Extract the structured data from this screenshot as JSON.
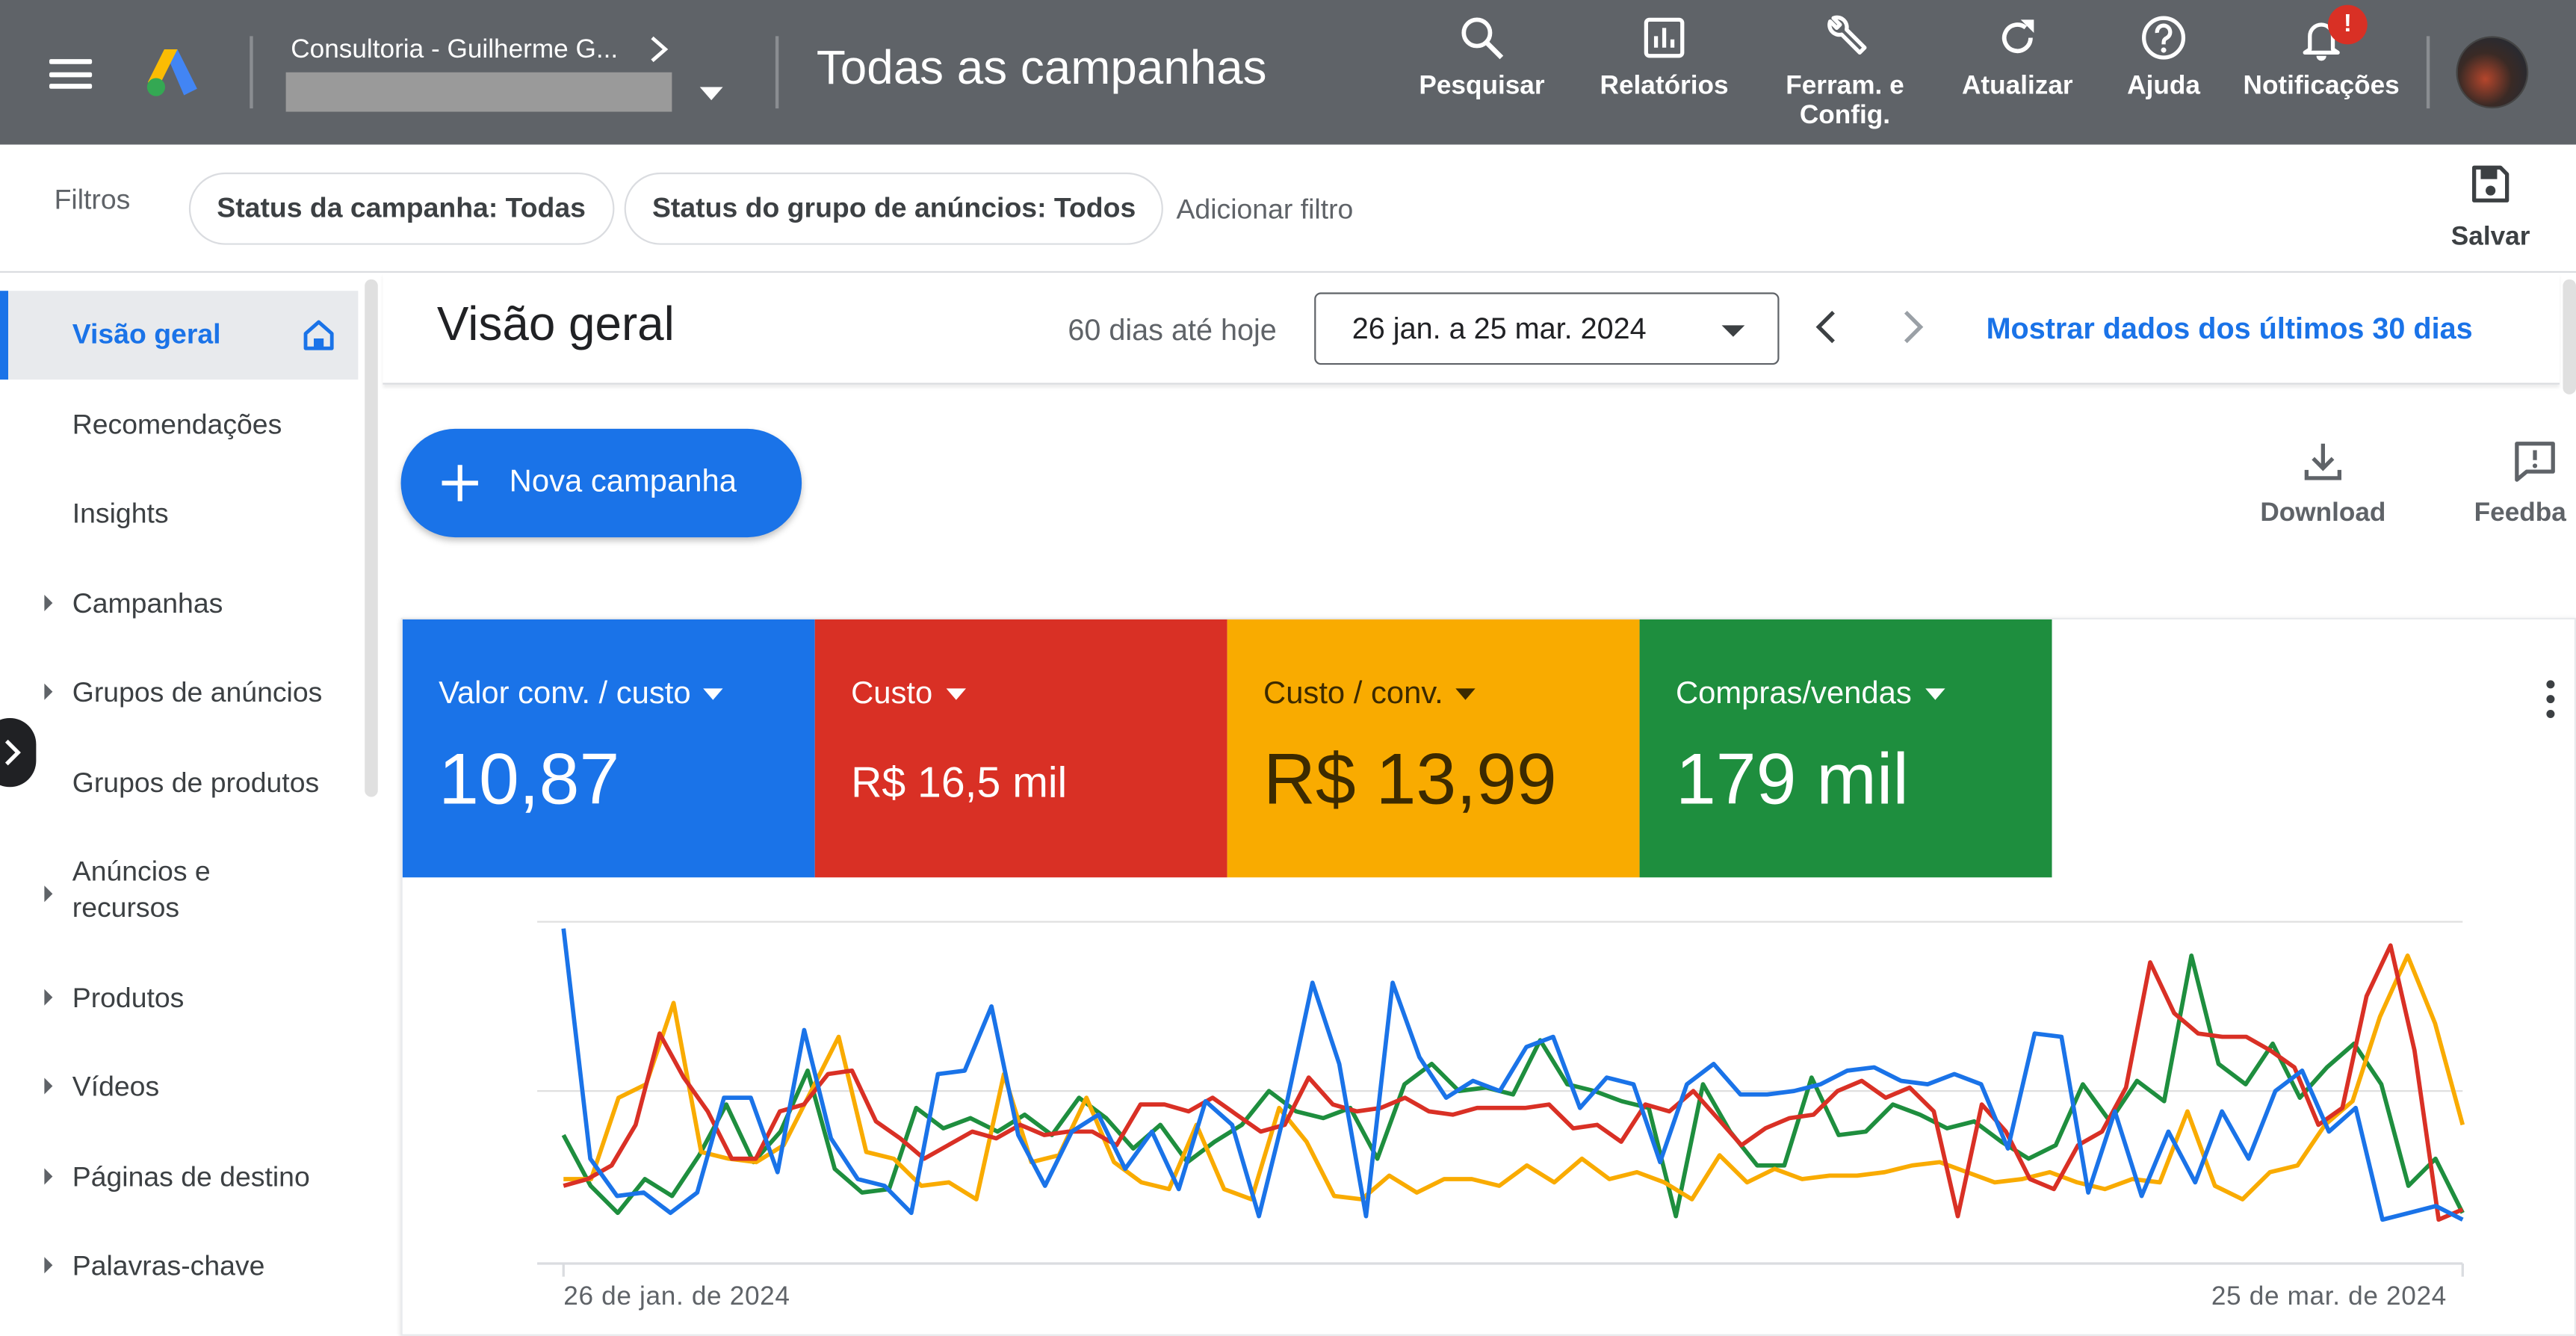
{
  "topbar": {
    "account_name": "Consultoria - Guilherme G...",
    "page_title": "Todas as campanhas",
    "nav": [
      {
        "label": "Pesquisar",
        "icon": "search-icon"
      },
      {
        "label": "Relatórios",
        "icon": "reports-icon"
      },
      {
        "label": "Ferram. e Config.",
        "icon": "wrench-icon"
      },
      {
        "label": "Atualizar",
        "icon": "refresh-icon"
      },
      {
        "label": "Ajuda",
        "icon": "help-icon"
      },
      {
        "label": "Notificações",
        "icon": "bell-icon"
      }
    ],
    "notification_badge": "!"
  },
  "filters": {
    "label": "Filtros",
    "chips": [
      "Status da campanha: Todas",
      "Status do grupo de anúncios: Todos"
    ],
    "add_filter": "Adicionar filtro",
    "save_label": "Salvar"
  },
  "sidebar": {
    "items": [
      {
        "label": "Visão geral",
        "active": true
      },
      {
        "label": "Recomendações"
      },
      {
        "label": "Insights"
      },
      {
        "label": "Campanhas",
        "expandable": true
      },
      {
        "label": "Grupos de anúncios",
        "expandable": true
      },
      {
        "label": "Grupos de produtos"
      },
      {
        "label": "Anúncios e recursos",
        "expandable": true
      },
      {
        "label": "Produtos",
        "expandable": true
      },
      {
        "label": "Vídeos",
        "expandable": true
      },
      {
        "label": "Páginas de destino",
        "expandable": true
      },
      {
        "label": "Palavras-chave",
        "expandable": true
      }
    ]
  },
  "overview": {
    "title": "Visão geral",
    "range_label": "60 dias até hoje",
    "date_range": "26 jan. a 25 mar. 2024",
    "last30_link": "Mostrar dados dos últimos 30 dias"
  },
  "actions": {
    "new_campaign": "Nova campanha",
    "download": "Download",
    "feedback": "Feedba"
  },
  "metrics": [
    {
      "label": "Valor conv. / custo",
      "value": "10,87",
      "color": "#1a73e8"
    },
    {
      "label": "Custo",
      "value": "R$ 16,5 mil",
      "color": "#d93025"
    },
    {
      "label": "Custo / conv.",
      "value": "R$ 13,99",
      "color": "#f9ab00"
    },
    {
      "label": "Compras/vendas",
      "value": "179 mil",
      "color": "#1e8e3e"
    }
  ],
  "colors": {
    "blue": "#1a73e8",
    "red": "#d93025",
    "yellow": "#f9ab00",
    "green": "#1e8e3e",
    "topbar": "#5f6368"
  },
  "chart_data": {
    "type": "line",
    "x_start_label": "26 de jan. de 2024",
    "x_end_label": "25 de mar. de 2024",
    "ylim": [
      0,
      100
    ],
    "grid": true,
    "legend": "none",
    "series": [
      {
        "color": "#1a73e8",
        "values": [
          98,
          30,
          19,
          20,
          14,
          20,
          48,
          48,
          26,
          68,
          36,
          24,
          22,
          14,
          55,
          56,
          75,
          37,
          22,
          38,
          43,
          27,
          38,
          21,
          47,
          40,
          13,
          45,
          82,
          58,
          13,
          82,
          60,
          48,
          53,
          50,
          63,
          66,
          45,
          54,
          52,
          29,
          52,
          58,
          49,
          49,
          50,
          52,
          56,
          57,
          53,
          52,
          55,
          52,
          33,
          67,
          66,
          20,
          44,
          19,
          38,
          23,
          44,
          30,
          50,
          56,
          38,
          45,
          12,
          14,
          16,
          12
        ]
      },
      {
        "color": "#d93025",
        "values": [
          22,
          24,
          28,
          40,
          67,
          54,
          44,
          30,
          30,
          44,
          46,
          55,
          56,
          41,
          36,
          30,
          34,
          38,
          36,
          40,
          37,
          38,
          38,
          34,
          46,
          46,
          44,
          48,
          43,
          38,
          40,
          54,
          46,
          44,
          45,
          48,
          44,
          43,
          45,
          45,
          45,
          46,
          39,
          40,
          35,
          46,
          44,
          50,
          42,
          34,
          39,
          42,
          43,
          50,
          53,
          48,
          51,
          44,
          13,
          46,
          38,
          24,
          21,
          34,
          38,
          51,
          88,
          73,
          67,
          66,
          66,
          62,
          57,
          40,
          45,
          78,
          93,
          62,
          12,
          15
        ]
      },
      {
        "color": "#f9ab00",
        "values": [
          24,
          24,
          48,
          52,
          76,
          32,
          30,
          29,
          34,
          50,
          66,
          32,
          30,
          22,
          23,
          18,
          55,
          29,
          31,
          48,
          29,
          23,
          21,
          40,
          21,
          18,
          45,
          35,
          19,
          18,
          25,
          20,
          24,
          24,
          22,
          28,
          23,
          30,
          24,
          26,
          23,
          18,
          31,
          23,
          27,
          24,
          25,
          25,
          26,
          28,
          29,
          26,
          23,
          24,
          26,
          23,
          21,
          24,
          23,
          44,
          22,
          18,
          26,
          28,
          40,
          47,
          72,
          90,
          70,
          40
        ]
      },
      {
        "color": "#1e8e3e",
        "values": [
          37,
          22,
          14,
          24,
          19,
          31,
          46,
          29,
          38,
          56,
          27,
          20,
          21,
          45,
          39,
          42,
          38,
          43,
          37,
          48,
          42,
          33,
          40,
          29,
          35,
          40,
          50,
          44,
          42,
          45,
          30,
          52,
          58,
          50,
          51,
          49,
          65,
          52,
          50,
          47,
          45,
          13,
          52,
          38,
          28,
          28,
          54,
          37,
          38,
          46,
          43,
          39,
          41,
          35,
          30,
          34,
          52,
          41,
          53,
          47,
          90,
          58,
          52,
          64,
          48,
          57,
          64,
          52,
          22,
          30,
          14
        ]
      }
    ]
  }
}
